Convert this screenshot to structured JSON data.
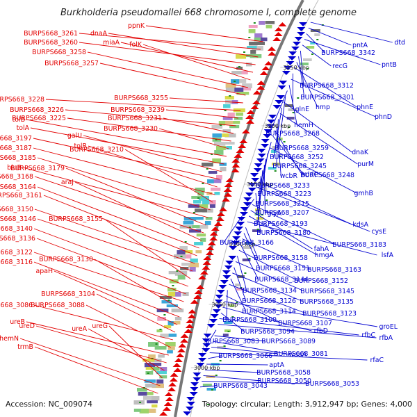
{
  "title": "Burkholderia pseudomallei 668 chromosome I, complete genome",
  "footer": {
    "accession": "Accession: NC_009074",
    "summary": "Topology: circular; Length: 3,912,947 bp; Genes: 4,000"
  },
  "colors": {
    "reverse_strand": "#e30000",
    "forward_strand": "#0000d0",
    "backbone": "#777777",
    "tick": "#1a8c1a"
  },
  "kbp_markers": [
    "3250 kbp",
    "3200 kbp",
    "3150 kbp",
    "3100 kbp",
    "3050 kbp",
    "3000 kbp"
  ],
  "left_genes": [
    "ppnK",
    "BURPS668_3261",
    "dnaA",
    "BURPS668_3260",
    "miaA",
    "folK",
    "BURPS668_3258",
    "BURPS668_3257",
    "BURPS668_3255",
    "BURPS668_3228",
    "BURPS668_3239",
    "BURPS668_3226",
    "BURPS668_3231",
    "BURPS668_3225",
    "BURPS668_3230",
    "tolB",
    "tolA",
    "galU",
    "BURPS668_3197",
    "tolR",
    "BURPS668_3187",
    "BURPS668_3210",
    "BURPS668_3185",
    "bluB",
    "BURPS668_3179",
    "BURPS668_3168",
    "araJ",
    "BURPS668_3164",
    "BURPS668_3161",
    "BURPS668_3150",
    "BURPS668_3146",
    "BURPS668_3155",
    "BURPS668_3140",
    "BURPS668_3136",
    "BURPS668_3122",
    "BURPS668_3130",
    "BURPS668_3116",
    "apaH",
    "BURPS668_3104",
    "BURPS668_3086",
    "BURPS668_3088",
    "ureB",
    "ureD",
    "ureA",
    "ureG",
    "hemN",
    "trmB"
  ],
  "right_genes": [
    "dtd",
    "pntA",
    "BURPS668_3342",
    "pntB",
    "recG",
    "BURPS668_3312",
    "BURPS668_3301",
    "hmp",
    "phnE",
    "glnE",
    "phnD",
    "hemH",
    "BURPS668_3268",
    "BURPS668_3259",
    "dnaK",
    "BURPS668_3252",
    "purM",
    "BURPS668_3245",
    "wcbR",
    "hddC",
    "BURPS668_3248",
    "BURPS668_3233",
    "gmhB",
    "BURPS668_3223",
    "BURPS668_3215",
    "glyA",
    "BURPS668_3207",
    "BURPS668_3193",
    "kdsA",
    "cysE",
    "BURPS668_3180",
    "BURPS668_3166",
    "BURPS668_3183",
    "fahA",
    "hmgA",
    "lsfA",
    "BURPS668_3158",
    "BURPS668_3151",
    "BURPS668_3163",
    "BURPS668_3144",
    "BURPS668_3152",
    "BURPS668_3134",
    "BURPS668_3145",
    "BURPS668_3126",
    "BURPS668_3135",
    "BURPS668_3114",
    "BURPS668_3123",
    "BURPS668_3100",
    "BURPS668_3107",
    "groEL",
    "rfbD",
    "BURPS668_3094",
    "rfbC",
    "rfbA",
    "BURPS668_3083",
    "BURPS668_3089",
    "waaA",
    "BURPS668_3081",
    "rfaC",
    "BURPS668_3066",
    "aptA",
    "BURPS668_3058",
    "BURPS668_3050",
    "BURPS668_3053",
    "BURPS668_3043"
  ]
}
